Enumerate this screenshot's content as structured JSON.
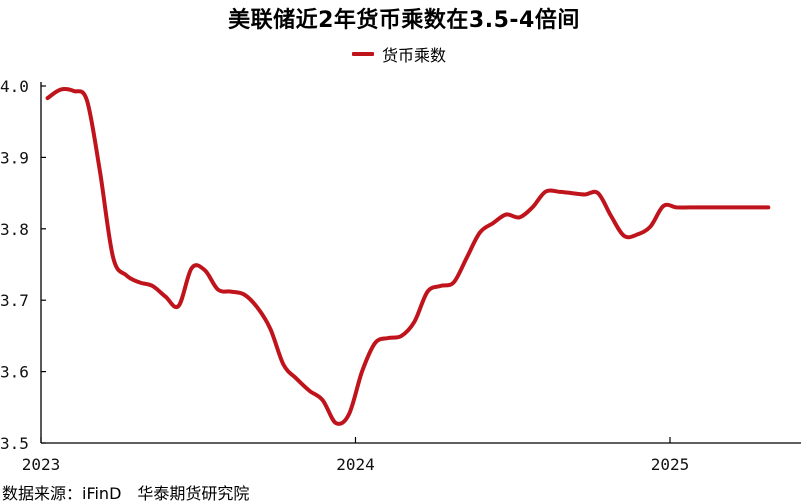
{
  "title": "美联储近2年货币乘数在3.5-4倍间",
  "source": "数据来源：iFinD　华泰期货研究院",
  "colors": {
    "series": "#c0141c",
    "axis": "#000000"
  },
  "chart_data": {
    "type": "line",
    "title": "美联储近2年货币乘数在3.5-4倍间",
    "xlabel": "",
    "ylabel": "",
    "legend_position": "top-center",
    "grid": false,
    "xlim": [
      "2023-01",
      "2025-05"
    ],
    "ylim": [
      3.5,
      4.0
    ],
    "y_ticks": [
      "3.5",
      "3.6",
      "3.7",
      "3.8",
      "3.9",
      "4.0"
    ],
    "x_ticks": [
      "2023",
      "2024",
      "2025"
    ],
    "series": [
      {
        "name": "货币乘数",
        "x": [
          "2023-01",
          "2023-01",
          "2023-02",
          "2023-02",
          "2023-03",
          "2023-03",
          "2023-04",
          "2023-04",
          "2023-05",
          "2023-05",
          "2023-06",
          "2023-06",
          "2023-07",
          "2023-07",
          "2023-08",
          "2023-08",
          "2023-09",
          "2023-09",
          "2023-10",
          "2023-10",
          "2023-11",
          "2023-11",
          "2023-12",
          "2023-12",
          "2024-01",
          "2024-01",
          "2024-02",
          "2024-02",
          "2024-03",
          "2024-03",
          "2024-04",
          "2024-04",
          "2024-05",
          "2024-05",
          "2024-06",
          "2024-06",
          "2024-07",
          "2024-07",
          "2024-08",
          "2024-08",
          "2024-09",
          "2024-09",
          "2024-10",
          "2024-10",
          "2024-11",
          "2024-11",
          "2024-12",
          "2024-12",
          "2025-01",
          "2025-01",
          "2025-02",
          "2025-02",
          "2025-03",
          "2025-03",
          "2025-04",
          "2025-04"
        ],
        "y": [
          3.983,
          3.995,
          3.993,
          3.98,
          3.88,
          3.76,
          3.735,
          3.725,
          3.72,
          3.705,
          3.692,
          3.745,
          3.742,
          3.715,
          3.712,
          3.708,
          3.69,
          3.66,
          3.61,
          3.59,
          3.573,
          3.56,
          3.528,
          3.54,
          3.6,
          3.64,
          3.647,
          3.65,
          3.67,
          3.712,
          3.72,
          3.725,
          3.76,
          3.795,
          3.808,
          3.82,
          3.816,
          3.83,
          3.852,
          3.852,
          3.85,
          3.848,
          3.85,
          3.818,
          3.79,
          3.792,
          3.803,
          3.832,
          3.83,
          3.83,
          3.83,
          3.83,
          3.83,
          3.83,
          3.83,
          3.83
        ]
      }
    ]
  }
}
